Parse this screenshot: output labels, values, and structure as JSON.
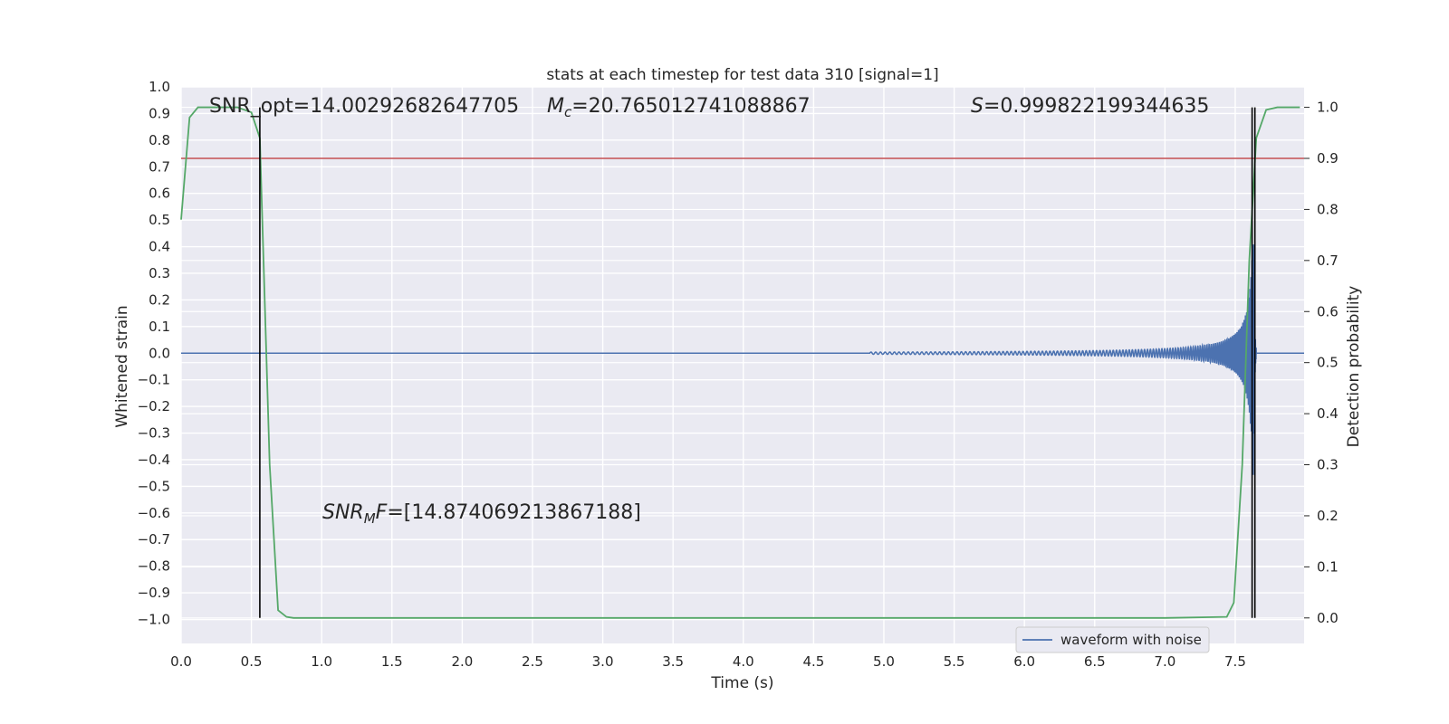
{
  "chart_data": {
    "type": "line",
    "title": "stats at each timestep for test data 310 [signal=1]",
    "xlabel": "Time (s)",
    "ylabel_left": "Whitened strain",
    "ylabel_right": "Detection probability",
    "xlim": [
      0.0,
      7.99
    ],
    "ylim_left": [
      -1.09,
      1.0
    ],
    "ylim_right": [
      -0.05,
      1.04
    ],
    "x_ticks": [
      "0.0",
      "0.5",
      "1.0",
      "1.5",
      "2.0",
      "2.5",
      "3.0",
      "3.5",
      "4.0",
      "4.5",
      "5.0",
      "5.5",
      "6.0",
      "6.5",
      "7.0",
      "7.5"
    ],
    "y_ticks_left": [
      "1.0",
      "0.9",
      "0.8",
      "0.7",
      "0.6",
      "0.5",
      "0.4",
      "0.3",
      "0.2",
      "0.1",
      "0.0",
      "−0.1",
      "−0.2",
      "−0.3",
      "−0.4",
      "−0.5",
      "−0.6",
      "−0.7",
      "−0.8",
      "−0.9",
      "−1.0"
    ],
    "y_ticks_right": [
      "0.0",
      "0.1",
      "0.2",
      "0.3",
      "0.4",
      "0.5",
      "0.6",
      "0.7",
      "0.8",
      "0.9",
      "1.0"
    ],
    "grid": true,
    "legend_position": "lower-right",
    "legend": [
      "waveform with noise"
    ],
    "annotations": {
      "snr_opt": "SNR_opt=14.00292682647705",
      "mc_sym": "M",
      "mc_sub": "c",
      "mc_val": "=20.765012741088867",
      "s_sym": "S",
      "s_val": "=0.999822199344635",
      "snr_mf_sym": "SNR",
      "snr_mf_sub": "M",
      "snr_mf_rest": "F",
      "snr_mf_val": "=[14.874069213867188]"
    },
    "series": [
      {
        "name": "waveform with noise",
        "color": "#4c72b0",
        "axis": "left",
        "chirp": {
          "start": 4.9,
          "merger": 7.63,
          "end": 7.66,
          "amp_start": 0.004,
          "amp_merger": 0.5,
          "cycles": 130
        }
      },
      {
        "color": "#55a868",
        "axis": "right",
        "x": [
          0.0,
          0.06,
          0.12,
          0.2,
          0.3,
          0.4,
          0.5,
          0.56,
          0.63,
          0.69,
          0.75,
          0.8,
          1.0,
          2.0,
          3.0,
          4.0,
          5.0,
          6.0,
          7.0,
          7.44,
          7.49,
          7.55,
          7.6,
          7.65,
          7.72,
          7.8,
          7.88,
          7.96
        ],
        "y": [
          0.78,
          0.98,
          1.0,
          1.0,
          1.0,
          1.0,
          0.99,
          0.94,
          0.3,
          0.015,
          0.002,
          0.0,
          0.0,
          0.0,
          0.0,
          0.0,
          0.0,
          0.0,
          0.0,
          0.002,
          0.03,
          0.3,
          0.7,
          0.94,
          0.995,
          1.0,
          1.0,
          1.0
        ]
      }
    ],
    "threshold": {
      "value": 0.9,
      "axis": "right",
      "color": "#c44e52"
    },
    "vertical_markers": {
      "color": "#000000",
      "x": [
        0.56,
        7.62,
        7.64
      ],
      "ymin": 0.0,
      "ymax": 1.0,
      "axis": "right"
    }
  }
}
